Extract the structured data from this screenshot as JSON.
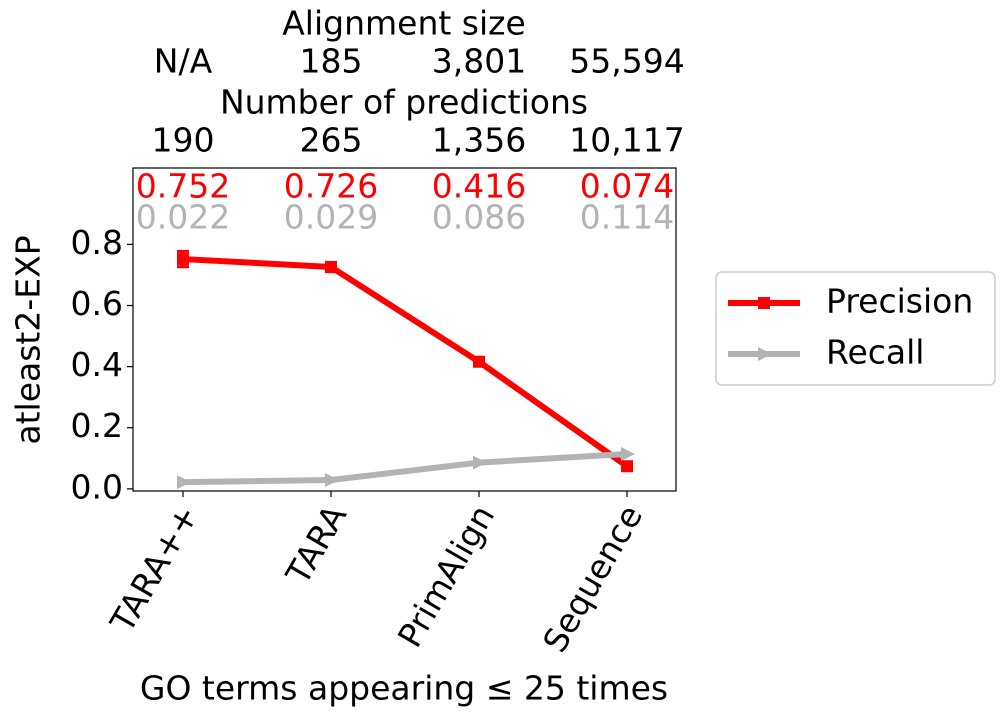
{
  "chart_data": {
    "type": "line",
    "top_rows": [
      {
        "title": "Alignment size",
        "labels": [
          "N/A",
          "185",
          "3,801",
          "55,594"
        ]
      },
      {
        "title": "Number of predictions",
        "labels": [
          "190",
          "265",
          "1,356",
          "10,117"
        ]
      }
    ],
    "categories": [
      "TARA++",
      "TARA",
      "PrimAlign",
      "Sequence"
    ],
    "xlabel": "GO terms appearing ≤ 25 times",
    "ylabel": "atleast2-EXP",
    "ylim": [
      -0.007,
      1.05
    ],
    "yticks": [
      {
        "value": 0,
        "label": "0.0"
      },
      {
        "value": 0.2,
        "label": "0.2"
      },
      {
        "value": 0.4,
        "label": "0.4"
      },
      {
        "value": 0.6,
        "label": "0.6"
      },
      {
        "value": 0.8,
        "label": "0.8"
      }
    ],
    "series": [
      {
        "name": "Precision",
        "color": "#ff0000",
        "marker": "square",
        "values": [
          0.752,
          0.726,
          0.416,
          0.074
        ],
        "errors": [
          0.025,
          0.015,
          0.01,
          0.01
        ]
      },
      {
        "name": "Recall",
        "color": "#b3b3b3",
        "marker": "triangle-right",
        "values": [
          0.022,
          0.029,
          0.086,
          0.114
        ]
      }
    ],
    "legend": "right"
  }
}
